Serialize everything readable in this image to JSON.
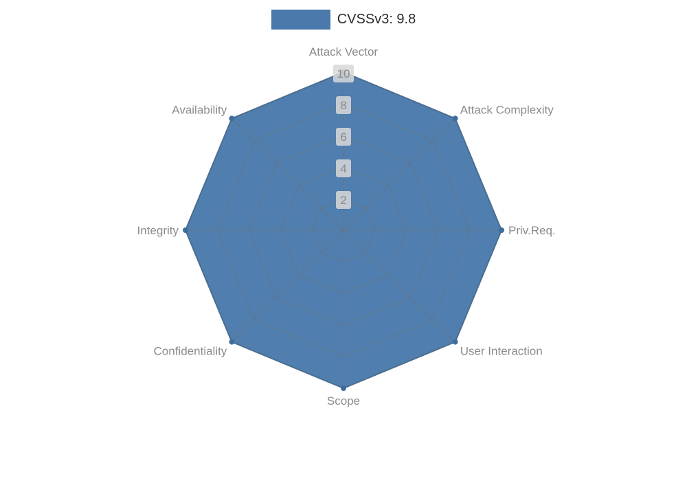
{
  "page": {
    "background_color": "#ffffff"
  },
  "legend": {
    "label": "CVSSv3: 9.8"
  },
  "chart_data": {
    "type": "radar",
    "title": "",
    "categories": [
      "Attack Vector",
      "Attack Complexity",
      "Priv.Req.",
      "User Interaction",
      "Scope",
      "Confidentiality",
      "Integrity",
      "Availability"
    ],
    "series": [
      {
        "name": "CVSSv3: 9.8",
        "values": [
          10,
          10,
          10,
          10,
          10,
          10,
          10,
          10
        ]
      }
    ],
    "ticks": [
      2,
      4,
      6,
      8,
      10
    ],
    "rlim": [
      0,
      10
    ],
    "grid": true,
    "legend_position": "top-center",
    "colors": {
      "series": "#4a7aab",
      "series_edge": "#3c6d9c",
      "grid": "#6f6f6f",
      "axis_label": "#8b8b8b",
      "tick_text": "#8a8a8a",
      "tick_bg": "#d8d8d8",
      "legend_text": "#2b2b2b"
    }
  }
}
